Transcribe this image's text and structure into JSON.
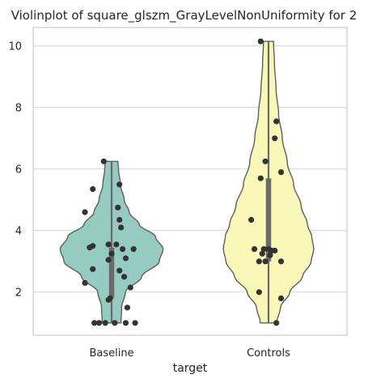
{
  "chart_data": {
    "type": "violin",
    "title": "Violinplot of square_glszm_GrayLevelNonUniformity for 2",
    "xlabel": "target",
    "ylabel": "",
    "ylim": [
      0.6,
      10.6
    ],
    "yticks": [
      2,
      4,
      6,
      8,
      10
    ],
    "grid": true,
    "categories": [
      {
        "name": "Baseline",
        "color": "#96cbc1",
        "range": [
          1.0,
          6.25
        ],
        "quartiles": [
          1.8,
          3.45
        ],
        "density": [
          [
            1.0,
            0.15
          ],
          [
            1.5,
            0.16
          ],
          [
            2.0,
            0.22
          ],
          [
            2.5,
            0.48
          ],
          [
            3.0,
            0.76
          ],
          [
            3.4,
            0.82
          ],
          [
            3.8,
            0.7
          ],
          [
            4.2,
            0.44
          ],
          [
            4.6,
            0.28
          ],
          [
            5.0,
            0.2
          ],
          [
            5.5,
            0.14
          ],
          [
            6.0,
            0.11
          ],
          [
            6.25,
            0.1
          ]
        ],
        "points": [
          [
            -0.05,
            6.25
          ],
          [
            0.05,
            5.5
          ],
          [
            -0.12,
            5.35
          ],
          [
            0.04,
            4.75
          ],
          [
            0.05,
            4.35
          ],
          [
            -0.17,
            4.6
          ],
          [
            0.06,
            4.1
          ],
          [
            -0.12,
            3.5
          ],
          [
            -0.02,
            3.55
          ],
          [
            0.07,
            3.4
          ],
          [
            0.14,
            3.4
          ],
          [
            -0.14,
            3.45
          ],
          [
            0.0,
            3.25
          ],
          [
            0.03,
            3.55
          ],
          [
            -0.02,
            3.05
          ],
          [
            0.09,
            3.1
          ],
          [
            -0.12,
            2.75
          ],
          [
            0.05,
            2.7
          ],
          [
            0.08,
            2.5
          ],
          [
            -0.17,
            2.3
          ],
          [
            0.12,
            2.15
          ],
          [
            -0.01,
            1.8
          ],
          [
            -0.02,
            1.75
          ],
          [
            0.1,
            1.5
          ],
          [
            -0.11,
            1.0
          ],
          [
            -0.04,
            1.0
          ],
          [
            0.09,
            1.0
          ],
          [
            0.15,
            1.0
          ],
          [
            -0.08,
            1.0
          ],
          [
            0.02,
            1.0
          ]
        ]
      },
      {
        "name": "Controls",
        "color": "#f9f8b9",
        "range": [
          1.0,
          10.15
        ],
        "quartiles": [
          3.0,
          5.7
        ],
        "density": [
          [
            1.0,
            0.13
          ],
          [
            1.5,
            0.19
          ],
          [
            2.0,
            0.34
          ],
          [
            2.5,
            0.54
          ],
          [
            3.0,
            0.68
          ],
          [
            3.4,
            0.72
          ],
          [
            3.8,
            0.69
          ],
          [
            4.2,
            0.62
          ],
          [
            4.8,
            0.52
          ],
          [
            5.5,
            0.4
          ],
          [
            6.2,
            0.3
          ],
          [
            7.0,
            0.22
          ],
          [
            7.8,
            0.16
          ],
          [
            8.6,
            0.12
          ],
          [
            9.4,
            0.095
          ],
          [
            10.15,
            0.08
          ]
        ],
        "points": [
          [
            -0.05,
            10.15
          ],
          [
            0.05,
            7.55
          ],
          [
            0.04,
            7.0
          ],
          [
            -0.02,
            6.25
          ],
          [
            0.08,
            5.9
          ],
          [
            -0.05,
            5.7
          ],
          [
            -0.11,
            4.35
          ],
          [
            -0.09,
            3.4
          ],
          [
            -0.03,
            3.4
          ],
          [
            0.0,
            3.4
          ],
          [
            0.02,
            3.35
          ],
          [
            0.04,
            3.35
          ],
          [
            -0.04,
            3.25
          ],
          [
            0.01,
            3.2
          ],
          [
            -0.06,
            3.0
          ],
          [
            -0.02,
            3.0
          ],
          [
            0.08,
            3.0
          ],
          [
            -0.06,
            2.0
          ],
          [
            0.08,
            1.8
          ],
          [
            0.05,
            1.0
          ]
        ]
      }
    ]
  }
}
